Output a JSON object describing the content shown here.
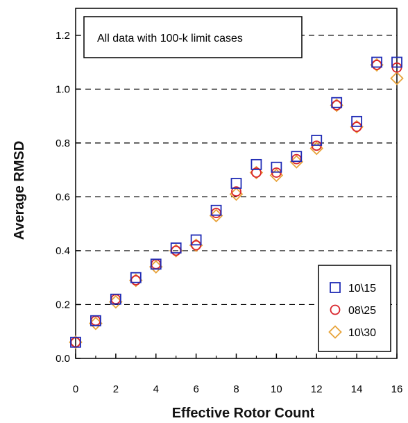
{
  "chart_data": {
    "type": "scatter",
    "title": "",
    "xlabel": "Effective Rotor Count",
    "ylabel": "Average RMSD",
    "xlim": [
      0,
      16
    ],
    "ylim": [
      0,
      1.3
    ],
    "xticks": [
      0,
      2,
      4,
      6,
      8,
      10,
      12,
      14,
      16
    ],
    "xtick_labels": [
      "0",
      "2",
      "4",
      "6",
      "8",
      "10",
      "12",
      "14",
      "16"
    ],
    "yticks": [
      0,
      0.2,
      0.4,
      0.6,
      0.8,
      1.0,
      1.2
    ],
    "ytick_labels": [
      "0.0",
      "0.2",
      "0.4",
      "0.6",
      "0.8",
      "1.0",
      "1.2"
    ],
    "grid": "horizontal dashed",
    "annotation": "All data with 100-k limit cases",
    "legend_position": "bottom-right",
    "x": [
      0,
      1,
      2,
      3,
      4,
      5,
      6,
      7,
      8,
      9,
      10,
      11,
      12,
      13,
      14,
      15,
      16
    ],
    "series": [
      {
        "name": "10\\15",
        "marker": "square",
        "color": "#1f2bb5",
        "values": [
          0.06,
          0.14,
          0.22,
          0.3,
          0.35,
          0.41,
          0.44,
          0.55,
          0.65,
          0.72,
          0.71,
          0.75,
          0.81,
          0.95,
          0.88,
          1.1,
          1.1
        ]
      },
      {
        "name": "08\\25",
        "marker": "circle",
        "color": "#d9232a",
        "values": [
          0.06,
          0.14,
          0.22,
          0.29,
          0.35,
          0.4,
          0.42,
          0.54,
          0.62,
          0.69,
          0.69,
          0.74,
          0.79,
          0.94,
          0.86,
          1.09,
          1.08
        ]
      },
      {
        "name": "10\\30",
        "marker": "diamond",
        "color": "#e8a33a",
        "values": [
          0.06,
          0.13,
          0.21,
          0.29,
          0.34,
          0.4,
          0.42,
          0.53,
          0.61,
          0.69,
          0.68,
          0.73,
          0.78,
          0.94,
          0.86,
          1.09,
          1.04
        ]
      }
    ]
  }
}
